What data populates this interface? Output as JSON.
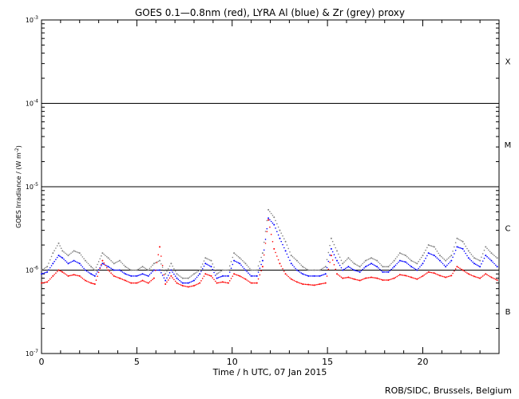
{
  "chart_data": {
    "type": "scatter",
    "title": "GOES 0.1—0.8nm (red), LYRA Al (blue) & Zr (grey) proxy",
    "xlabel": "Time / h UTC, 07 Jan 2015",
    "ylabel": "GOES Irradiance / (W m",
    "ylabel_sup": "-2",
    "ylabel_end": ")",
    "xlim": [
      0,
      24
    ],
    "ylim": [
      1e-07,
      0.001
    ],
    "yscale": "log",
    "x_ticks": [
      0,
      5,
      10,
      15,
      20
    ],
    "x_tick_labels": [
      "0",
      "5",
      "10",
      "15",
      "20"
    ],
    "y_ticks": [
      1e-07,
      1e-06,
      1e-05,
      0.0001,
      0.001
    ],
    "y_tick_labels": [
      {
        "base": "10",
        "exp": "-7"
      },
      {
        "base": "10",
        "exp": "-6"
      },
      {
        "base": "10",
        "exp": "-5"
      },
      {
        "base": "10",
        "exp": "-4"
      },
      {
        "base": "10",
        "exp": "-3"
      }
    ],
    "flare_class_lines": [
      1e-06,
      1e-05,
      0.0001
    ],
    "flare_classes": [
      {
        "label": "X",
        "y": 0.00032
      },
      {
        "label": "M",
        "y": 3.2e-05
      },
      {
        "label": "C",
        "y": 3.2e-06
      },
      {
        "label": "B",
        "y": 3.2e-07
      }
    ],
    "series": [
      {
        "color": "#808080",
        "x": [
          0.0,
          0.3,
          0.6,
          0.9,
          1.1,
          1.4,
          1.7,
          2.0,
          2.3,
          2.6,
          2.8,
          3.2,
          3.5,
          3.8,
          4.1,
          4.4,
          4.7,
          5.0,
          5.3,
          5.6,
          5.9,
          6.2,
          6.5,
          6.8,
          7.1,
          7.4,
          7.7,
          8.0,
          8.3,
          8.6,
          8.9,
          9.2,
          9.5,
          9.8,
          10.1,
          10.4,
          10.7,
          11.0,
          11.3,
          11.6,
          11.9,
          12.2,
          12.5,
          12.8,
          13.1,
          13.4,
          13.7,
          14.0,
          14.3,
          14.6,
          14.9,
          15.2,
          15.5,
          15.8,
          16.1,
          16.4,
          16.7,
          17.0,
          17.3,
          17.6,
          17.9,
          18.2,
          18.5,
          18.8,
          19.1,
          19.4,
          19.7,
          20.0,
          20.3,
          20.6,
          20.9,
          21.2,
          21.5,
          21.8,
          22.1,
          22.4,
          22.7,
          23.0,
          23.3,
          23.6,
          23.9
        ],
        "values": [
          1e-06,
          1.1e-06,
          1.6e-06,
          2.1e-06,
          1.7e-06,
          1.5e-06,
          1.7e-06,
          1.6e-06,
          1.3e-06,
          1.1e-06,
          1e-06,
          1.6e-06,
          1.4e-06,
          1.2e-06,
          1.3e-06,
          1.1e-06,
          1e-06,
          1e-06,
          1.1e-06,
          1e-06,
          1.2e-06,
          1.3e-06,
          9e-07,
          1.2e-06,
          9e-07,
          8e-07,
          8e-07,
          9e-07,
          1e-06,
          1.4e-06,
          1.3e-06,
          9e-07,
          1e-06,
          1e-06,
          1.6e-06,
          1.4e-06,
          1.2e-06,
          1e-06,
          1e-06,
          1.6e-06,
          5.3e-06,
          4.3e-06,
          3e-06,
          2.2e-06,
          1.5e-06,
          1.3e-06,
          1.1e-06,
          1e-06,
          1e-06,
          1e-06,
          1.1e-06,
          2.4e-06,
          1.7e-06,
          1.2e-06,
          1.4e-06,
          1.2e-06,
          1.1e-06,
          1.3e-06,
          1.4e-06,
          1.3e-06,
          1.1e-06,
          1.1e-06,
          1.3e-06,
          1.6e-06,
          1.5e-06,
          1.3e-06,
          1.2e-06,
          1.5e-06,
          2e-06,
          1.9e-06,
          1.5e-06,
          1.3e-06,
          1.5e-06,
          2.4e-06,
          2.2e-06,
          1.7e-06,
          1.4e-06,
          1.3e-06,
          1.9e-06,
          1.6e-06,
          1.4e-06
        ]
      },
      {
        "color": "#0000ff",
        "x": [
          0.0,
          0.3,
          0.6,
          0.9,
          1.1,
          1.4,
          1.7,
          2.0,
          2.3,
          2.6,
          2.8,
          3.2,
          3.5,
          3.8,
          4.1,
          4.4,
          4.7,
          5.0,
          5.3,
          5.6,
          5.9,
          6.2,
          6.5,
          6.8,
          7.1,
          7.4,
          7.7,
          8.0,
          8.3,
          8.6,
          8.9,
          9.2,
          9.5,
          9.8,
          10.1,
          10.4,
          10.7,
          11.0,
          11.3,
          11.6,
          11.9,
          12.2,
          12.5,
          12.8,
          13.1,
          13.4,
          13.7,
          14.0,
          14.3,
          14.6,
          14.9,
          15.2,
          15.5,
          15.8,
          16.1,
          16.4,
          16.7,
          17.0,
          17.3,
          17.6,
          17.9,
          18.2,
          18.5,
          18.8,
          19.1,
          19.4,
          19.7,
          20.0,
          20.3,
          20.6,
          20.9,
          21.2,
          21.5,
          21.8,
          22.1,
          22.4,
          22.7,
          23.0,
          23.3,
          23.6,
          23.9
        ],
        "values": [
          9e-07,
          9.5e-07,
          1.2e-06,
          1.5e-06,
          1.4e-06,
          1.2e-06,
          1.3e-06,
          1.2e-06,
          1e-06,
          9e-07,
          8.5e-07,
          1.2e-06,
          1.1e-06,
          1e-06,
          1e-06,
          9e-07,
          8.5e-07,
          8.5e-07,
          9e-07,
          8.5e-07,
          1e-06,
          1e-06,
          7.5e-07,
          1e-06,
          8e-07,
          7e-07,
          7e-07,
          7.5e-07,
          9e-07,
          1.2e-06,
          1.1e-06,
          8e-07,
          8.5e-07,
          8.5e-07,
          1.3e-06,
          1.2e-06,
          1e-06,
          8.5e-07,
          8.5e-07,
          1.3e-06,
          4.2e-06,
          3.5e-06,
          2.4e-06,
          1.7e-06,
          1.2e-06,
          1e-06,
          9e-07,
          8.5e-07,
          8.5e-07,
          8.5e-07,
          9e-07,
          1.8e-06,
          1.3e-06,
          1e-06,
          1.1e-06,
          1e-06,
          9.5e-07,
          1.1e-06,
          1.2e-06,
          1.1e-06,
          9.5e-07,
          9.5e-07,
          1.1e-06,
          1.3e-06,
          1.25e-06,
          1.1e-06,
          1e-06,
          1.2e-06,
          1.6e-06,
          1.5e-06,
          1.3e-06,
          1.1e-06,
          1.3e-06,
          1.9e-06,
          1.8e-06,
          1.4e-06,
          1.2e-06,
          1.1e-06,
          1.5e-06,
          1.3e-06,
          1.1e-06
        ]
      },
      {
        "color": "#ff0000",
        "x": [
          0.0,
          0.3,
          0.6,
          0.9,
          1.1,
          1.4,
          1.7,
          2.0,
          2.3,
          2.6,
          2.8,
          3.2,
          3.5,
          3.8,
          4.1,
          4.4,
          4.7,
          5.0,
          5.3,
          5.6,
          5.9,
          6.2,
          6.5,
          6.8,
          7.1,
          7.4,
          7.7,
          8.0,
          8.3,
          8.6,
          8.9,
          9.2,
          9.5,
          9.8,
          10.1,
          10.4,
          10.7,
          11.0,
          11.3,
          11.6,
          11.9,
          12.2,
          12.5,
          12.8,
          13.1,
          13.4,
          13.7,
          14.0,
          14.3,
          14.6,
          14.9,
          15.2,
          15.5,
          15.8,
          16.1,
          16.4,
          16.7,
          17.0,
          17.3,
          17.6,
          17.9,
          18.2,
          18.5,
          18.8,
          19.1,
          19.4,
          19.7,
          20.0,
          20.3,
          20.6,
          20.9,
          21.2,
          21.5,
          21.8,
          22.1,
          22.4,
          22.7,
          23.0,
          23.3,
          23.6,
          23.9
        ],
        "values": [
          7e-07,
          7.2e-07,
          8.5e-07,
          1e-06,
          9.5e-07,
          8.5e-07,
          8.8e-07,
          8.5e-07,
          7.5e-07,
          7e-07,
          6.8e-07,
          1.3e-06,
          1e-06,
          8.5e-07,
          8e-07,
          7.5e-07,
          7e-07,
          7e-07,
          7.5e-07,
          7e-07,
          8e-07,
          1.9e-06,
          6.8e-07,
          8.5e-07,
          7e-07,
          6.5e-07,
          6.3e-07,
          6.5e-07,
          7e-07,
          9e-07,
          8.5e-07,
          7e-07,
          7.2e-07,
          7e-07,
          9e-07,
          8.5e-07,
          7.8e-07,
          7e-07,
          7e-07,
          1.1e-06,
          4e-06,
          1.8e-06,
          1.2e-06,
          9e-07,
          7.8e-07,
          7.2e-07,
          6.8e-07,
          6.7e-07,
          6.6e-07,
          6.8e-07,
          7e-07,
          1.5e-06,
          9e-07,
          8e-07,
          8.2e-07,
          7.8e-07,
          7.5e-07,
          8e-07,
          8.2e-07,
          8e-07,
          7.6e-07,
          7.6e-07,
          8e-07,
          8.8e-07,
          8.6e-07,
          8.2e-07,
          7.8e-07,
          8.5e-07,
          9.5e-07,
          9.2e-07,
          8.6e-07,
          8.2e-07,
          8.6e-07,
          1.1e-06,
          1e-06,
          9e-07,
          8.4e-07,
          8e-07,
          9e-07,
          8.2e-07,
          7.6e-07
        ]
      }
    ],
    "footer": "ROB/SIDC, Brussels, Belgium"
  }
}
